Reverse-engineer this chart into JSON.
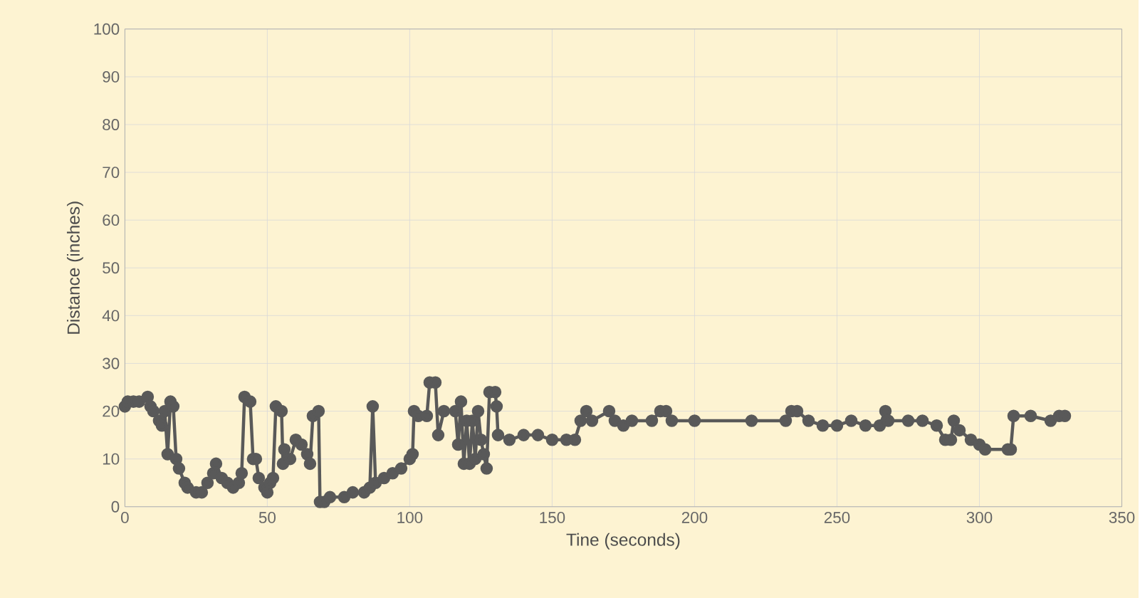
{
  "chart_data": {
    "type": "line",
    "xlabel": "Tine (seconds)",
    "ylabel": "Distance (inches)",
    "xlim": [
      0,
      350
    ],
    "xticks": [
      0,
      50,
      100,
      150,
      200,
      250,
      300,
      350
    ],
    "ylim": [
      0,
      100
    ],
    "yticks": [
      0,
      10,
      20,
      30,
      40,
      50,
      60,
      70,
      80,
      90,
      100
    ],
    "grid": true,
    "marker": "circle",
    "line_style": "solid",
    "series": [
      {
        "color": "#595959",
        "x": [
          0,
          1,
          3,
          5,
          8,
          9,
          10,
          12,
          13,
          14,
          15,
          16,
          17,
          18,
          19,
          21,
          22,
          25,
          27,
          29,
          31,
          32,
          34,
          36,
          38,
          40,
          41,
          42,
          44,
          45,
          46,
          47,
          49,
          50,
          51,
          52,
          53,
          55,
          55.5,
          56,
          58,
          60,
          62,
          64,
          65,
          66,
          68,
          68.5,
          70,
          72,
          77,
          80,
          84,
          86,
          87,
          88,
          91,
          94,
          97,
          100,
          101,
          101.5,
          103,
          106,
          107,
          109,
          110,
          112,
          116,
          117,
          118,
          119,
          120,
          121,
          122,
          123,
          124,
          125,
          126,
          127,
          128,
          130,
          130.5,
          131,
          135,
          140,
          145,
          150,
          155,
          158,
          160,
          162,
          164,
          170,
          172,
          175,
          178,
          185,
          188,
          190,
          192,
          200,
          220,
          232,
          234,
          236,
          240,
          245,
          250,
          255,
          260,
          265,
          267,
          268,
          275,
          280,
          285,
          288,
          290,
          291,
          293,
          297,
          300,
          302,
          310,
          311,
          312,
          318,
          325,
          328,
          330
        ],
        "values": [
          21,
          22,
          22,
          22,
          23,
          21,
          20,
          18,
          17,
          20,
          11,
          22,
          21,
          10,
          8,
          5,
          4,
          3,
          3,
          5,
          7,
          9,
          6,
          5,
          4,
          5,
          7,
          23,
          22,
          10,
          10,
          6,
          4,
          3,
          5,
          6,
          21,
          20,
          9,
          12,
          10,
          14,
          13,
          11,
          9,
          19,
          20,
          1,
          1,
          2,
          2,
          3,
          3,
          4,
          21,
          5,
          6,
          7,
          8,
          10,
          11,
          20,
          19,
          19,
          26,
          26,
          15,
          20,
          20,
          13,
          22,
          9,
          18,
          9,
          18,
          10,
          20,
          14,
          11,
          8,
          24,
          24,
          21,
          15,
          14,
          15,
          15,
          14,
          14,
          14,
          18,
          20,
          18,
          20,
          18,
          17,
          18,
          18,
          20,
          20,
          18,
          18,
          18,
          18,
          20,
          20,
          18,
          17,
          17,
          18,
          17,
          17,
          20,
          18,
          18,
          18,
          17,
          14,
          14,
          18,
          16,
          14,
          13,
          12,
          12,
          12,
          19,
          19,
          18,
          19,
          19
        ]
      }
    ]
  }
}
